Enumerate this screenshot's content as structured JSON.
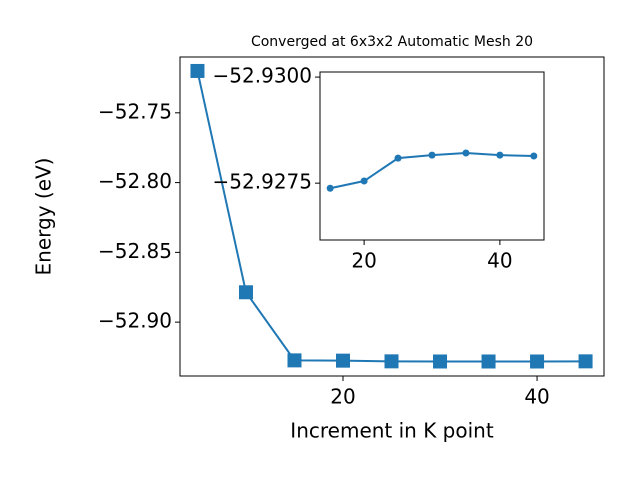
{
  "chart_data": [
    {
      "type": "line",
      "title": "Converged at 6x3x2 Automatic Mesh 20",
      "x_label": "Increment in K point",
      "y_label": "Energy (eV)",
      "x": [
        5,
        10,
        15,
        20,
        25,
        30,
        35,
        40,
        45
      ],
      "series": [
        {
          "color": "#1f77b4",
          "marker": "square",
          "values": [
            -52.72,
            -52.8786,
            -52.9274,
            -52.9276,
            -52.9281,
            -52.9282,
            -52.9282,
            -52.9282,
            -52.9281
          ]
        }
      ],
      "xlim": [
        3.2,
        46.9
      ],
      "ylim": [
        -52.9386,
        -52.71
      ],
      "xticks": [
        20,
        40
      ],
      "yticks": [
        {
          "value": -52.75,
          "label": "−52.75"
        },
        {
          "value": -52.8,
          "label": "−52.80"
        },
        {
          "value": -52.85,
          "label": "−52.85"
        },
        {
          "value": -52.9,
          "label": "−52.90"
        }
      ]
    },
    {
      "type": "line",
      "x": [
        15,
        20,
        25,
        30,
        35,
        40,
        45
      ],
      "series": [
        {
          "color": "#1f77b4",
          "marker": "circle",
          "values": [
            -52.92738,
            -52.92755,
            -52.92809,
            -52.92816,
            -52.92821,
            -52.92816,
            -52.92814
          ]
        }
      ],
      "xlim": [
        13.5,
        46.5
      ],
      "ylim": [
        -52.92616,
        -52.93012
      ],
      "xticks": [
        20,
        40
      ],
      "yticks": [
        {
          "value": -52.93,
          "label": "−52.9300"
        },
        {
          "value": -52.9275,
          "label": "−52.9275"
        }
      ]
    }
  ]
}
